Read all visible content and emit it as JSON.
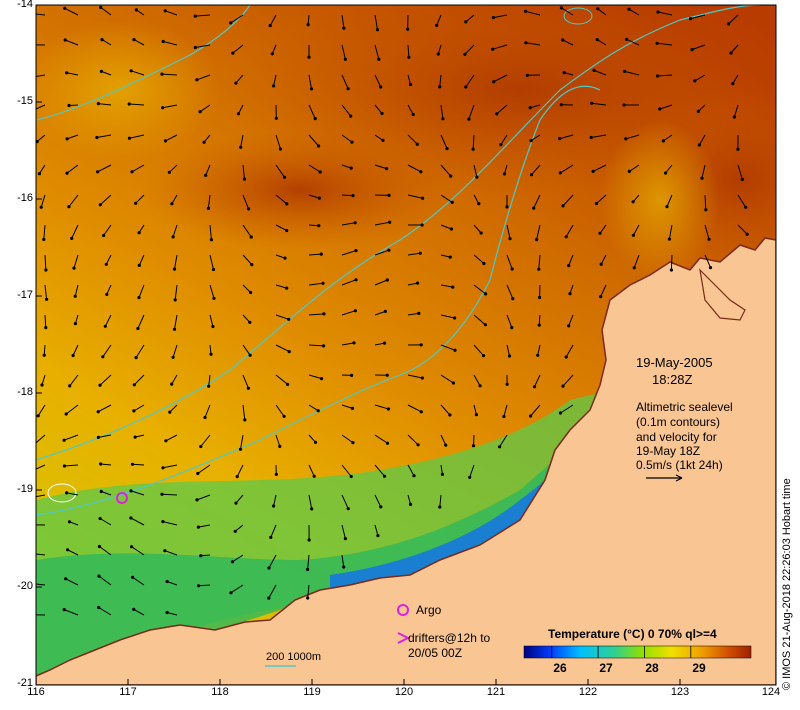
{
  "map": {
    "date": "19-May-2005",
    "time": "18:28Z",
    "legend_lines": [
      "Altimetric sealevel",
      "(0.1m contours)",
      "and velocity for",
      "19-May 18Z",
      "0.5m/s (1kt 24h)"
    ],
    "argo_label": "Argo",
    "drifters_lines": [
      "drifters@12h to",
      "20/05 00Z"
    ],
    "depth_label": "200  1000m",
    "credit": "© IMOS 21-Aug-2018 22:26:03 Hobart time",
    "colorbar": {
      "title": "Temperature (°C) 0 70% ql>=4",
      "ticks": [
        "26",
        "27",
        "28",
        "29"
      ],
      "tick_values": [
        26,
        27,
        28,
        29
      ],
      "range": [
        25.4,
        30.3
      ]
    },
    "lat_ticks": [
      "-14",
      "-15",
      "-16",
      "-17",
      "-18",
      "-19",
      "-20",
      "-21"
    ],
    "lon_ticks": [
      "116",
      "117",
      "118",
      "119",
      "120",
      "121",
      "122",
      "123",
      "124"
    ],
    "colors": {
      "land": "#f9c592",
      "warm": "#c95a00",
      "cool": "#3fbf4f",
      "arrow": "#000000",
      "contour": "#4ec9c9",
      "argo": "#e020e0"
    }
  }
}
